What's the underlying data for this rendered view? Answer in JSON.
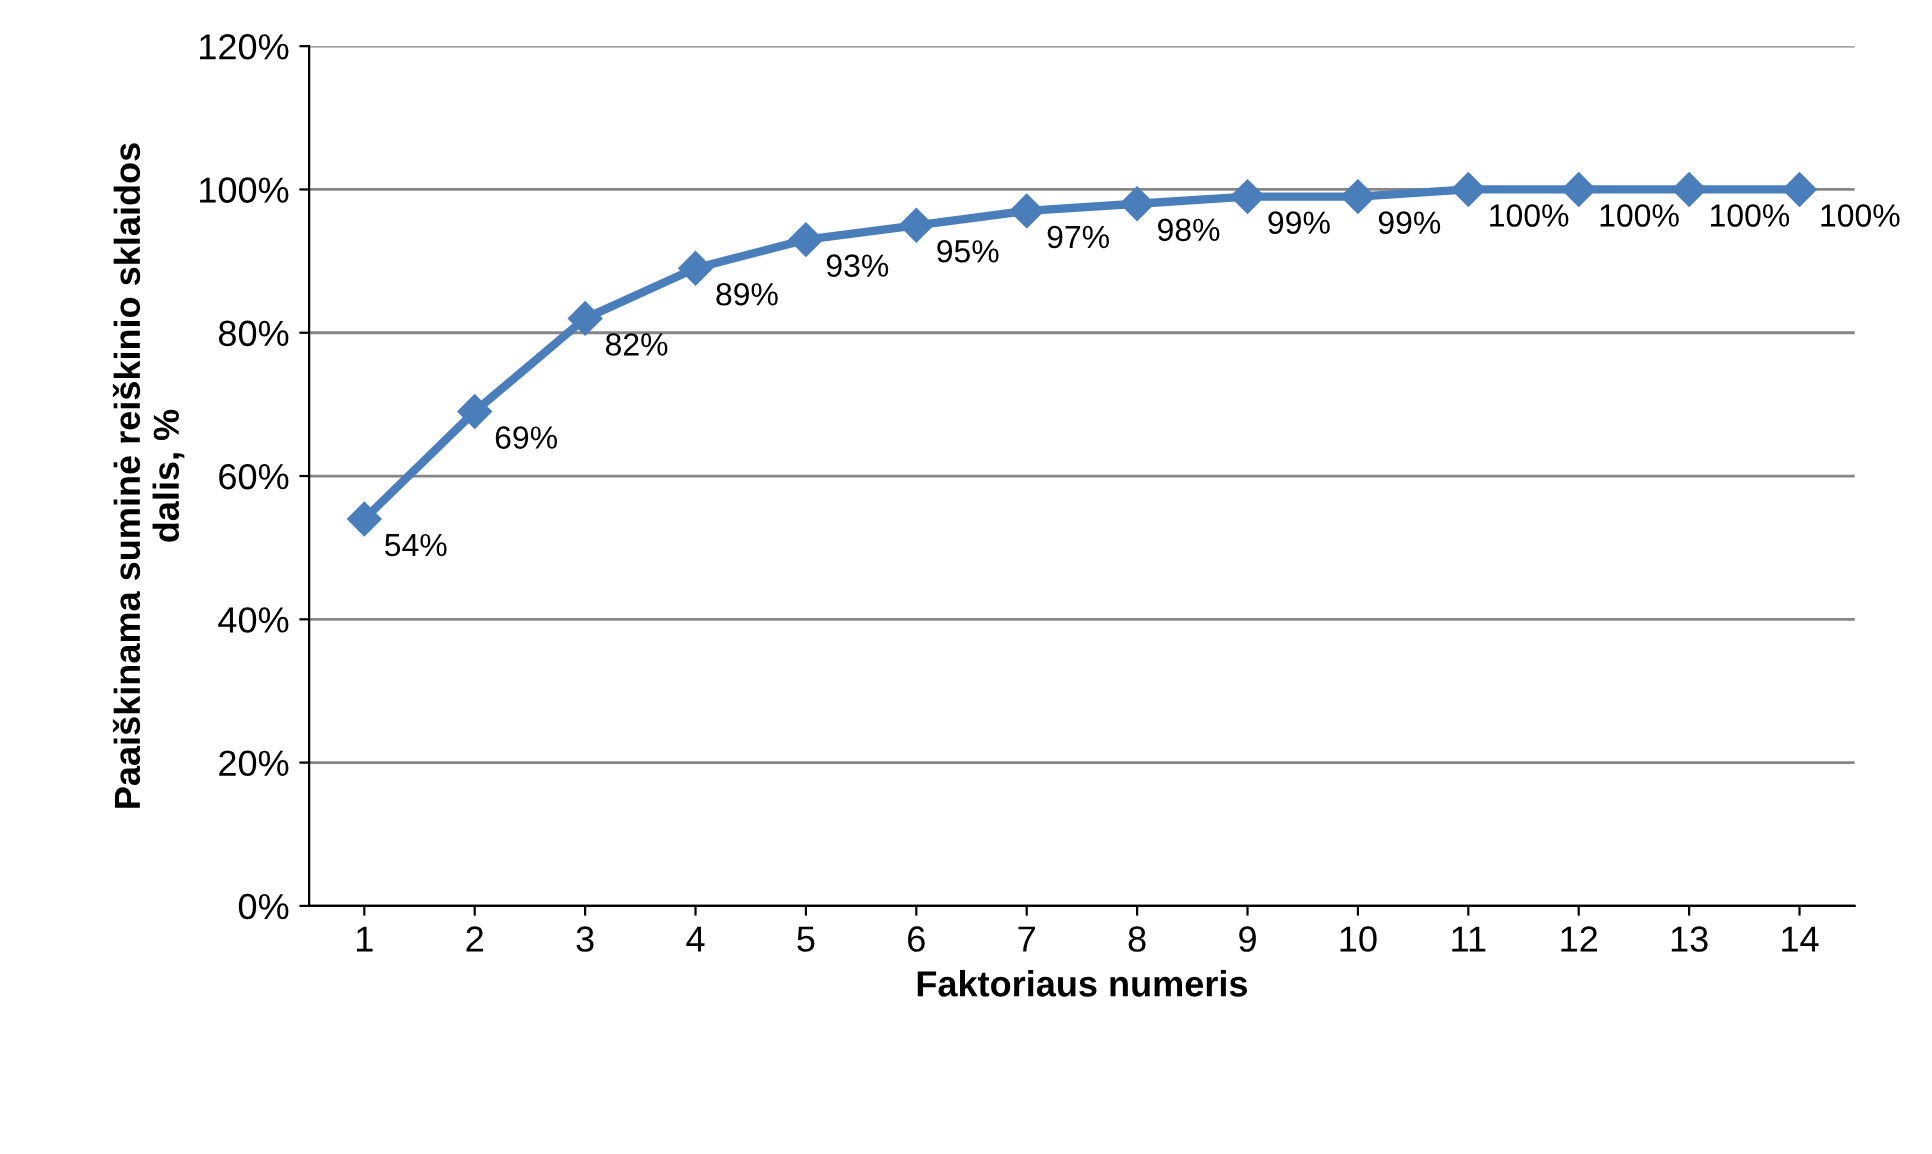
{
  "chart_data": {
    "type": "line",
    "xlabel": "Faktoriaus numeris",
    "ylabel": "Paaiškinama suminė reiškinio sklaidos\ndalis, %",
    "categories": [
      "1",
      "2",
      "3",
      "4",
      "5",
      "6",
      "7",
      "8",
      "9",
      "10",
      "11",
      "12",
      "13",
      "14"
    ],
    "series": [
      {
        "color": "#4a7ebb",
        "values": [
          54,
          69,
          82,
          89,
          93,
          95,
          97,
          98,
          99,
          99,
          100,
          100,
          100,
          100
        ],
        "value_labels": [
          "54%",
          "69%",
          "82%",
          "89%",
          "93%",
          "95%",
          "97%",
          "98%",
          "99%",
          "99%",
          "100%",
          "100%",
          "100%",
          "100%"
        ]
      }
    ],
    "ylim": [
      0,
      120
    ],
    "yticks": [
      {
        "value": 0,
        "label": "0%"
      },
      {
        "value": 20,
        "label": "20%"
      },
      {
        "value": 40,
        "label": "40%"
      },
      {
        "value": 60,
        "label": "60%"
      },
      {
        "value": 80,
        "label": "80%"
      },
      {
        "value": 100,
        "label": "100%"
      },
      {
        "value": 120,
        "label": "120%"
      }
    ],
    "grid": "y",
    "marker": "diamond",
    "line_style": "solid",
    "legend": false
  }
}
